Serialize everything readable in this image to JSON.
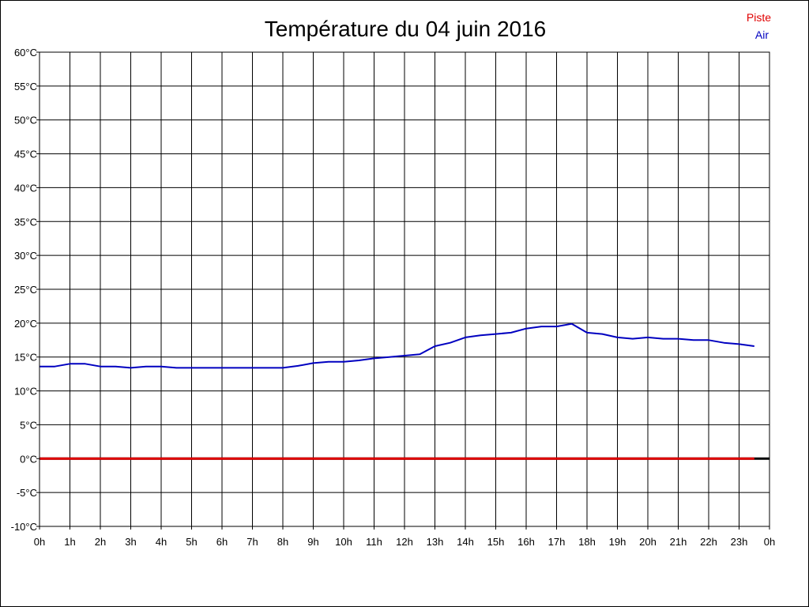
{
  "chart_data": {
    "type": "line",
    "title": "Température du 04 juin 2016",
    "xlabel": "",
    "ylabel": "",
    "xlim": [
      0,
      24
    ],
    "ylim": [
      -10,
      60
    ],
    "grid": true,
    "legend_position": "top-right",
    "x_tick_values": [
      0,
      1,
      2,
      3,
      4,
      5,
      6,
      7,
      8,
      9,
      10,
      11,
      12,
      13,
      14,
      15,
      16,
      17,
      18,
      19,
      20,
      21,
      22,
      23,
      24
    ],
    "x_tick_labels": [
      "0h",
      "1h",
      "2h",
      "3h",
      "4h",
      "5h",
      "6h",
      "7h",
      "8h",
      "9h",
      "10h",
      "11h",
      "12h",
      "13h",
      "14h",
      "15h",
      "16h",
      "17h",
      "18h",
      "19h",
      "20h",
      "21h",
      "22h",
      "23h",
      "0h"
    ],
    "y_tick_values": [
      60,
      55,
      50,
      45,
      40,
      35,
      30,
      25,
      20,
      15,
      10,
      5,
      0,
      -5,
      -10
    ],
    "y_tick_labels": [
      "60°C",
      "55°C",
      "50°C",
      "45°C",
      "40°C",
      "35°C",
      "30°C",
      "25°C",
      "20°C",
      "15°C",
      "10°C",
      "5°C",
      "0°C",
      "-5°C",
      "-10°C"
    ],
    "series": [
      {
        "name": "Piste",
        "color": "#e00000",
        "x": [
          0,
          23.5
        ],
        "y": [
          0,
          0
        ]
      },
      {
        "name": "Air",
        "color": "#0000c0",
        "x": [
          0,
          0.5,
          1,
          1.5,
          2,
          2.5,
          3,
          3.5,
          4,
          4.5,
          5,
          5.5,
          6,
          6.5,
          7,
          7.5,
          8,
          8.5,
          9,
          9.5,
          10,
          10.5,
          11,
          11.5,
          12,
          12.5,
          13,
          13.5,
          14,
          14.5,
          15,
          15.5,
          16,
          16.5,
          17,
          17.5,
          18,
          18.5,
          19,
          19.5,
          20,
          20.5,
          21,
          21.5,
          22,
          22.5,
          23,
          23.5
        ],
        "y": [
          13.6,
          13.6,
          14.0,
          14.0,
          13.6,
          13.6,
          13.4,
          13.6,
          13.6,
          13.4,
          13.4,
          13.4,
          13.4,
          13.4,
          13.4,
          13.4,
          13.4,
          13.7,
          14.1,
          14.3,
          14.3,
          14.5,
          14.8,
          15.0,
          15.2,
          15.4,
          16.6,
          17.1,
          17.9,
          18.2,
          18.4,
          18.6,
          19.2,
          19.5,
          19.5,
          19.9,
          18.6,
          18.4,
          17.9,
          17.7,
          17.9,
          17.7,
          17.7,
          17.5,
          17.5,
          17.1,
          16.9,
          16.6
        ]
      }
    ]
  }
}
